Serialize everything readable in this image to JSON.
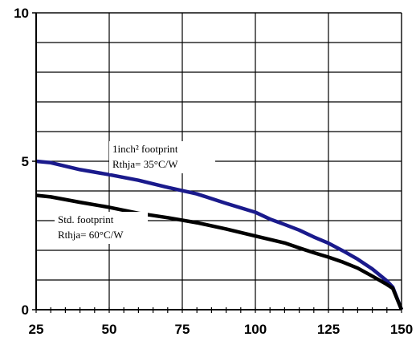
{
  "chart_data": {
    "type": "line",
    "title": "",
    "xlabel": "",
    "ylabel": "",
    "xlim": [
      25,
      150
    ],
    "ylim": [
      0,
      10
    ],
    "grid": true,
    "x_ticks": [
      25,
      50,
      75,
      100,
      125,
      150
    ],
    "x_tick_labels": [
      "25",
      "50",
      "75",
      "100",
      "125",
      "150"
    ],
    "x_minor_step": 5,
    "y_ticks": [
      0,
      5,
      10
    ],
    "y_tick_labels": [
      "0",
      "5",
      "10"
    ],
    "y_grid_step": 1,
    "series": [
      {
        "color": "#1a1a8c",
        "x": [
          25,
          30,
          40,
          50,
          60,
          70,
          80,
          90,
          100,
          105,
          110,
          115,
          120,
          125,
          130,
          135,
          140,
          145,
          147,
          150
        ],
        "y": [
          5.0,
          4.95,
          4.72,
          4.55,
          4.36,
          4.12,
          3.9,
          3.58,
          3.28,
          3.05,
          2.87,
          2.68,
          2.45,
          2.24,
          1.98,
          1.7,
          1.37,
          0.97,
          0.76,
          0
        ]
      },
      {
        "color": "#000000",
        "x": [
          25,
          30,
          40,
          50,
          60,
          70,
          80,
          90,
          100,
          110,
          115,
          120,
          125,
          130,
          135,
          140,
          145,
          147,
          150
        ],
        "y": [
          3.85,
          3.8,
          3.62,
          3.45,
          3.25,
          3.1,
          2.93,
          2.72,
          2.48,
          2.25,
          2.08,
          1.92,
          1.77,
          1.6,
          1.4,
          1.13,
          0.85,
          0.72,
          0
        ]
      }
    ],
    "annotations": [
      {
        "lines": [
          "1inch² footprint",
          "Rthja= 35°C/W"
        ],
        "series_index": 0
      },
      {
        "lines": [
          "Std. footprint",
          "Rthja= 60°C/W"
        ],
        "series_index": 1
      }
    ]
  }
}
